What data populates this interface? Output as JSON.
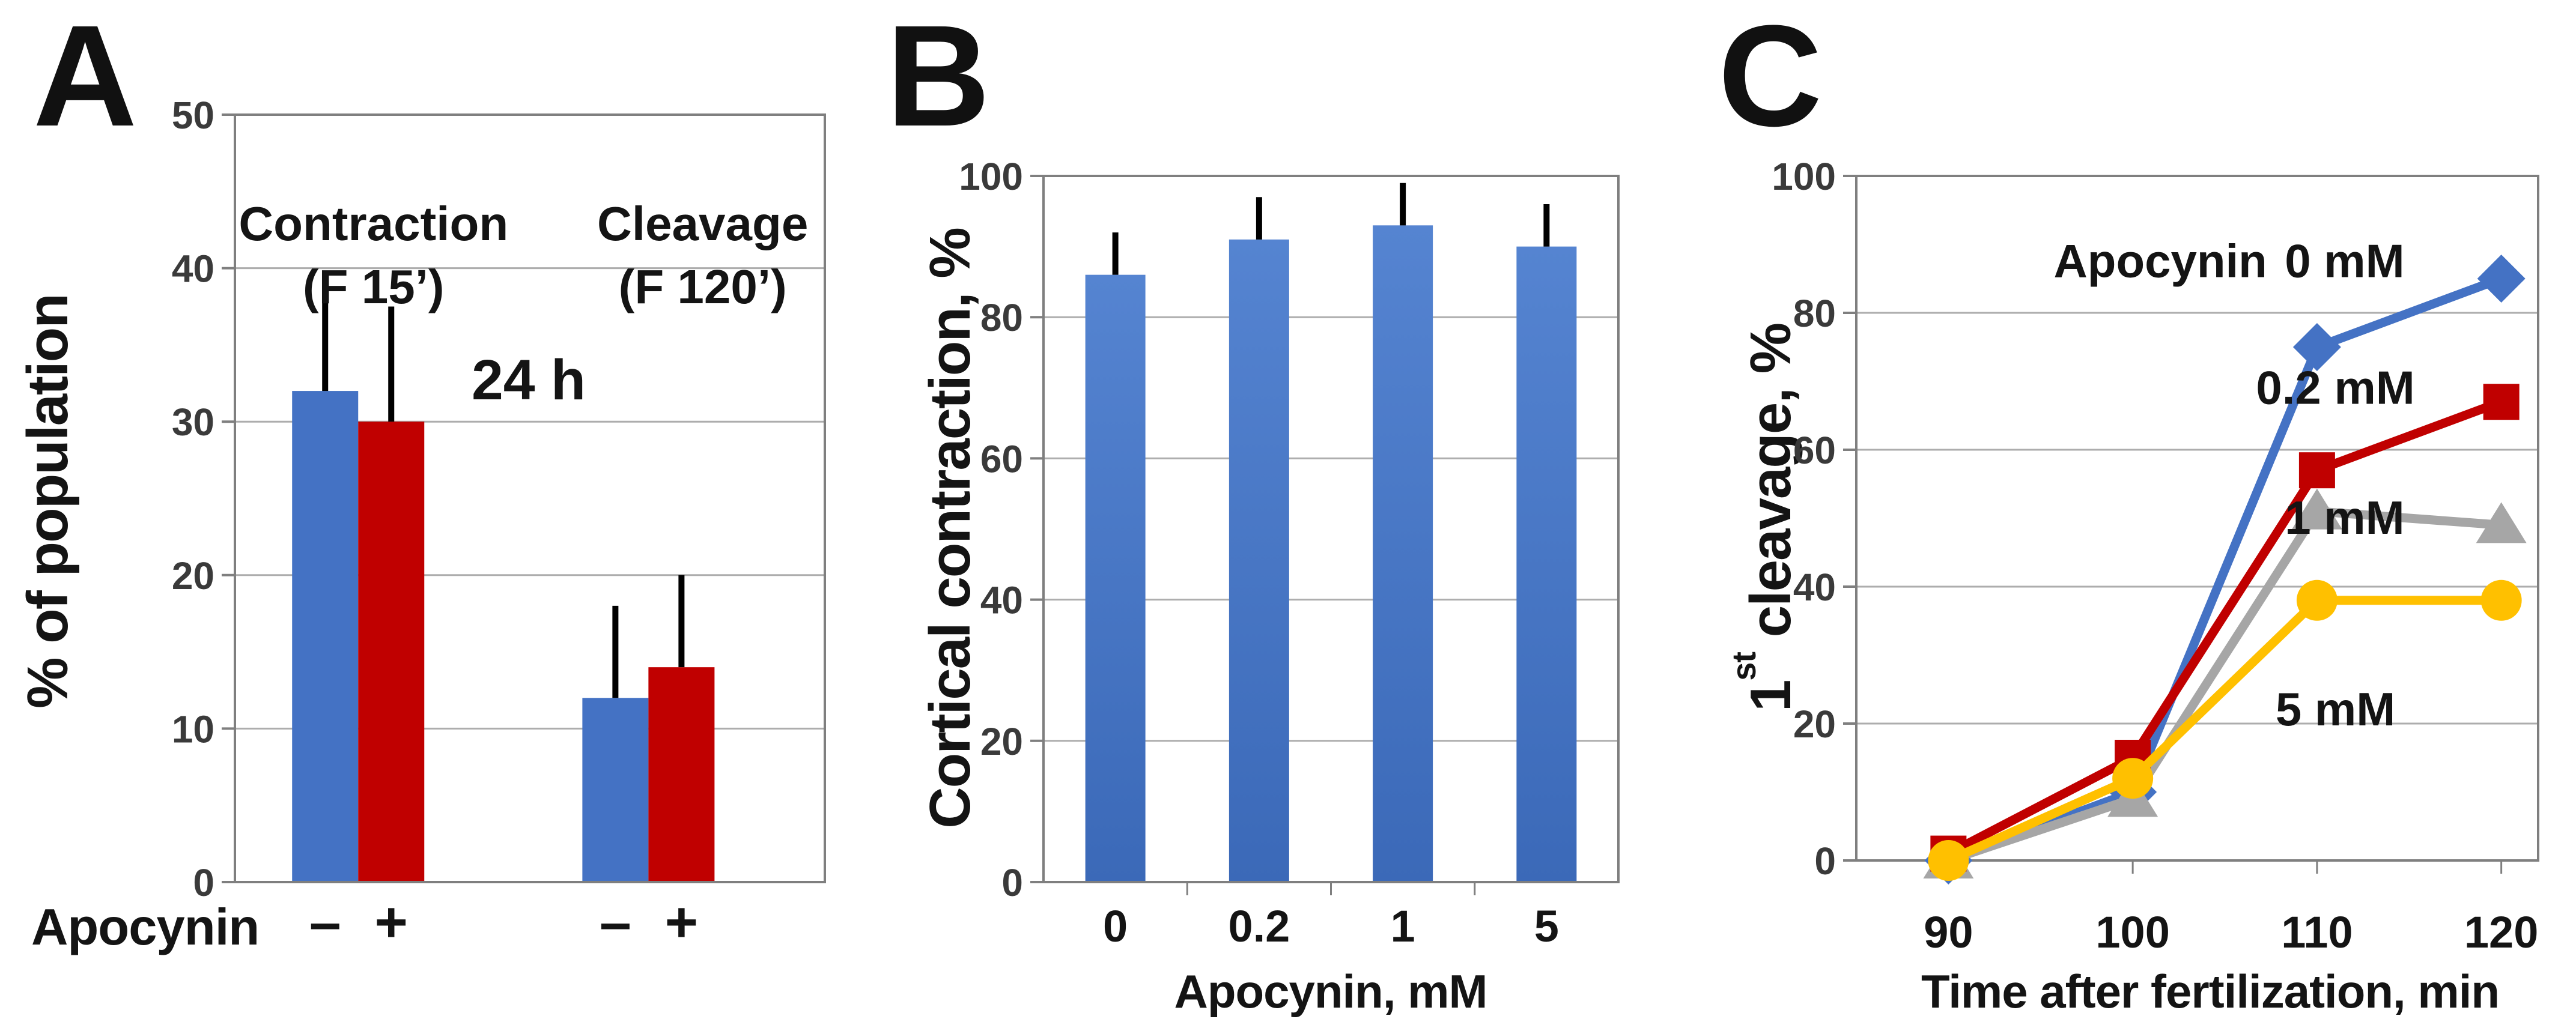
{
  "style": {
    "background": "#FFFFFF",
    "frame_color": "#7F7F7F",
    "grid_color": "#ADADAD",
    "error_bar_color": "#000000",
    "title_text_color": "#141414",
    "tick_text_color": "#3A3A3A",
    "blue": "#4472C4",
    "red": "#C00000",
    "gray": "#A6A6A6",
    "yellow": "#FFC000",
    "bar_gradient_top": "#5584D1",
    "bar_gradient_bottom": "#3B69B8"
  },
  "chart_data": [
    {
      "panel_letter": "A",
      "type": "bar",
      "ylabel": "% of population",
      "ylim": [
        0,
        50
      ],
      "yticks": [
        0,
        10,
        20,
        30,
        40,
        50
      ],
      "grid": true,
      "annotation": "24 h",
      "x_axis_label": "Apocynin",
      "group_labels": [
        {
          "line1": "Contraction",
          "line2": "(F 15’)"
        },
        {
          "line1": "Cleavage",
          "line2": "(F 120’)"
        }
      ],
      "bars": [
        {
          "tick": "–",
          "value": 32,
          "error_top": 39,
          "color": "#4472C4",
          "group": 0
        },
        {
          "tick": "+",
          "value": 30,
          "error_top": 37.5,
          "color": "#C00000",
          "group": 0
        },
        {
          "tick": "–",
          "value": 12,
          "error_top": 18,
          "color": "#4472C4",
          "group": 1
        },
        {
          "tick": "+",
          "value": 14,
          "error_top": 20,
          "color": "#C00000",
          "group": 1
        }
      ]
    },
    {
      "panel_letter": "B",
      "type": "bar",
      "ylabel": "Cortical contraction, %",
      "ylim": [
        0,
        100
      ],
      "yticks": [
        0,
        20,
        40,
        60,
        80,
        100
      ],
      "grid": true,
      "categories": [
        "0",
        "0.2",
        "1",
        "5"
      ],
      "values": [
        86,
        91,
        93,
        90
      ],
      "error_tops": [
        92,
        97,
        99,
        96
      ],
      "xlabel": "Apocynin, mM"
    },
    {
      "panel_letter": "C",
      "type": "line",
      "ylabel_parts": {
        "prefix": "1",
        "sup": "st",
        "rest": " cleavage, %"
      },
      "ylim": [
        0,
        100
      ],
      "yticks": [
        0,
        20,
        40,
        60,
        80,
        100
      ],
      "grid": true,
      "x": [
        90,
        100,
        110,
        120
      ],
      "xlim": [
        85,
        122
      ],
      "xlabel": "Time after fertilization, min",
      "series": [
        {
          "name": "0 mM",
          "color": "#4472C4",
          "marker": "diamond",
          "values": [
            0,
            10,
            75,
            85
          ]
        },
        {
          "name": "0.2 mM",
          "color": "#C00000",
          "marker": "square",
          "values": [
            1,
            15,
            57,
            67
          ]
        },
        {
          "name": "1 mM",
          "color": "#A6A6A6",
          "marker": "triangle",
          "values": [
            0,
            9,
            51,
            49
          ]
        },
        {
          "name": "5 mM",
          "color": "#FFC000",
          "marker": "circle",
          "values": [
            0,
            12,
            38,
            38
          ]
        }
      ],
      "annotations": [
        {
          "text": "Apocynin",
          "x": 101.5,
          "y": 87.5
        },
        {
          "text": "0 mM",
          "x": 111.5,
          "y": 87.5
        },
        {
          "text": "0.2 mM",
          "x": 111.0,
          "y": 69
        },
        {
          "text": "1 mM",
          "x": 111.5,
          "y": 50
        },
        {
          "text": "5 mM",
          "x": 111.0,
          "y": 22
        }
      ]
    }
  ]
}
